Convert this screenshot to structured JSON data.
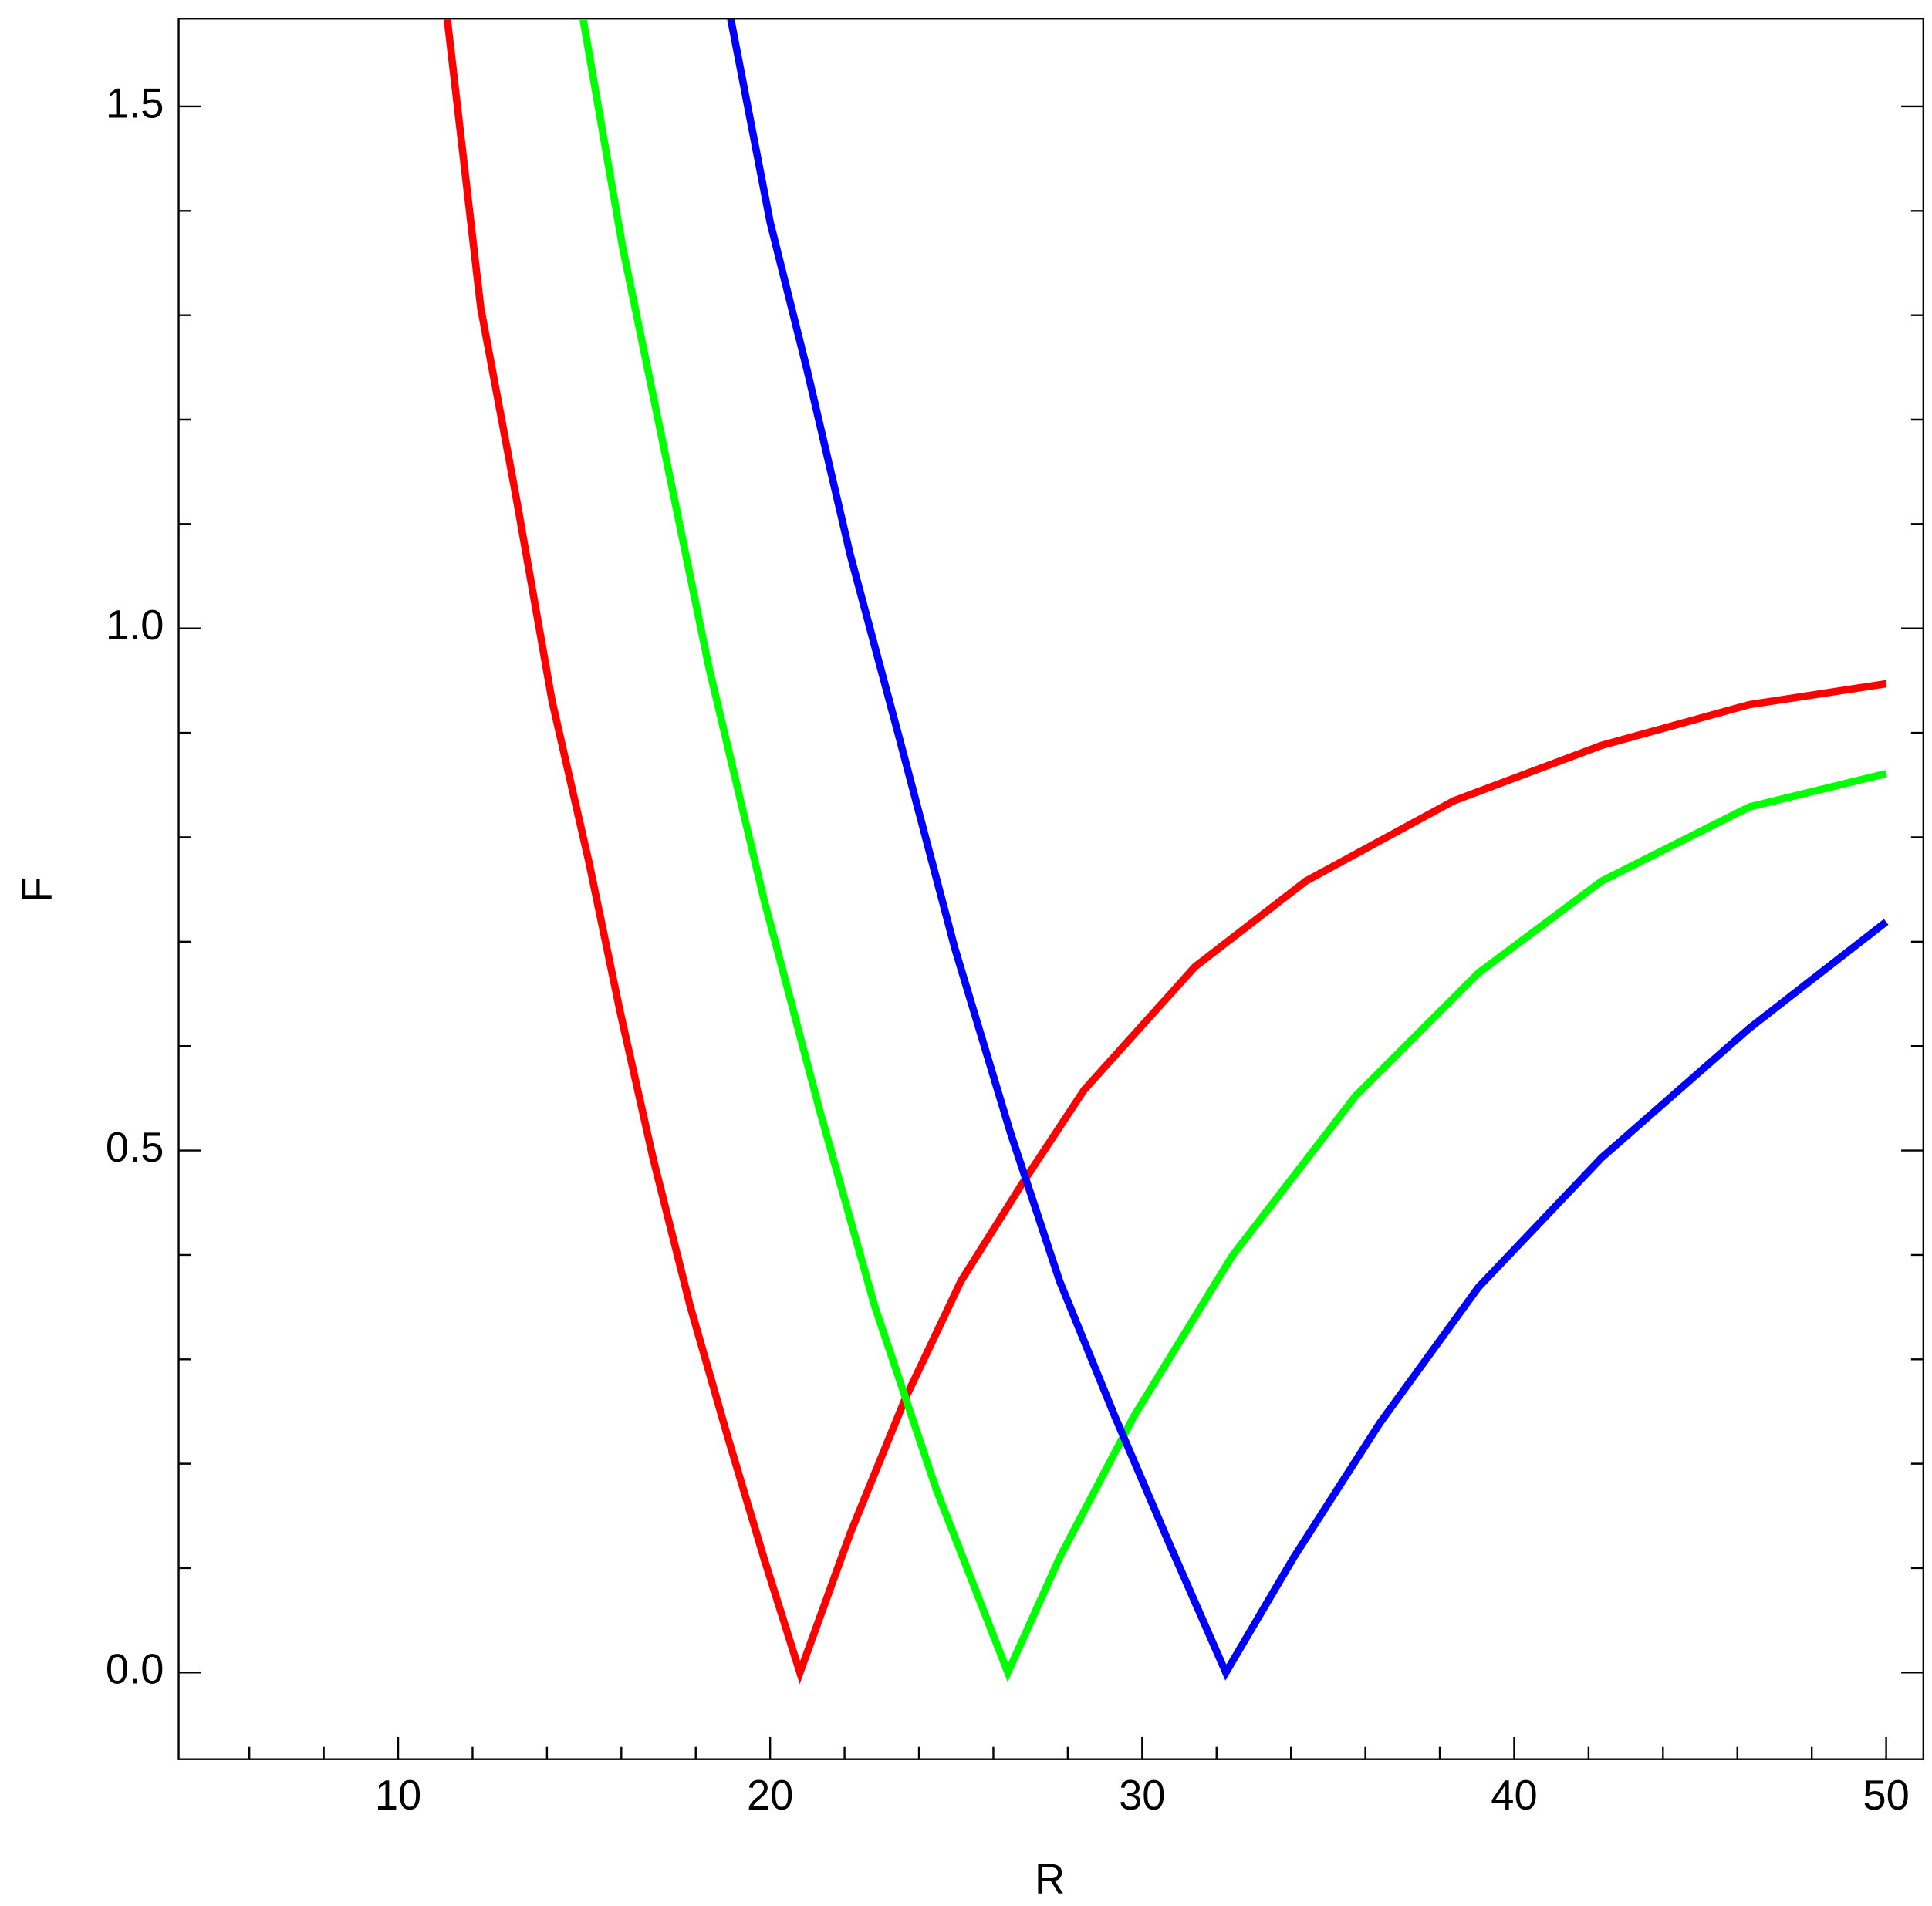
{
  "chart_data": {
    "type": "line",
    "x_label": "R",
    "y_label": "F",
    "xlim": [
      4.1,
      51
    ],
    "ylim": [
      -0.083,
      1.584
    ],
    "xticks": [
      10,
      20,
      30,
      40,
      50
    ],
    "yticks": [
      {
        "value": 0,
        "label": "0.0"
      },
      0.5,
      {
        "value": 1,
        "label": "1.0"
      },
      1.5
    ],
    "xminorticks": [
      6,
      8,
      12,
      14,
      16,
      18,
      22,
      24,
      26,
      28,
      32,
      34,
      36,
      38,
      42,
      44,
      46,
      48
    ],
    "yminorticks": [
      0.1,
      0.2,
      0.3,
      0.4,
      0.6,
      0.7,
      0.8,
      0.9,
      1.1,
      1.2,
      1.3,
      1.4
    ],
    "series": [
      {
        "color": "#ff0000",
        "x": [
          11.32,
          12.22,
          13.15,
          14.14,
          15.13,
          15.96,
          16.85,
          17.85,
          18.84,
          19.83,
          20.8,
          22.15,
          23.64,
          25.13,
          26.79,
          28.44,
          31.42,
          34.4,
          38.38,
          42.35,
          46.32,
          50
        ],
        "values": [
          1.584,
          1.307,
          1.13,
          0.93,
          0.776,
          0.634,
          0.493,
          0.351,
          0.228,
          0.11,
          0,
          0.133,
          0.263,
          0.375,
          0.469,
          0.558,
          0.676,
          0.758,
          0.835,
          0.888,
          0.927,
          0.947
        ]
      },
      {
        "color": "#00ff00",
        "x": [
          14.97,
          16.03,
          17.19,
          18.34,
          19.83,
          21.32,
          22.81,
          24.47,
          26.39,
          27.78,
          29.77,
          32.42,
          35.73,
          39.04,
          42.35,
          46.32,
          50
        ],
        "values": [
          1.584,
          1.366,
          1.165,
          0.965,
          0.741,
          0.54,
          0.351,
          0.175,
          0,
          0.11,
          0.245,
          0.399,
          0.552,
          0.67,
          0.758,
          0.829,
          0.861
        ]
      },
      {
        "color": "#0000ff",
        "x": [
          18.94,
          20.0,
          20.99,
          22.15,
          23.48,
          24.97,
          26.46,
          27.78,
          29.27,
          30.76,
          32.25,
          34.07,
          36.39,
          39.04,
          42.35,
          46.32,
          50
        ],
        "values": [
          1.584,
          1.389,
          1.248,
          1.071,
          0.894,
          0.693,
          0.517,
          0.375,
          0.245,
          0.121,
          0,
          0.11,
          0.239,
          0.369,
          0.493,
          0.617,
          0.719
        ]
      }
    ]
  }
}
